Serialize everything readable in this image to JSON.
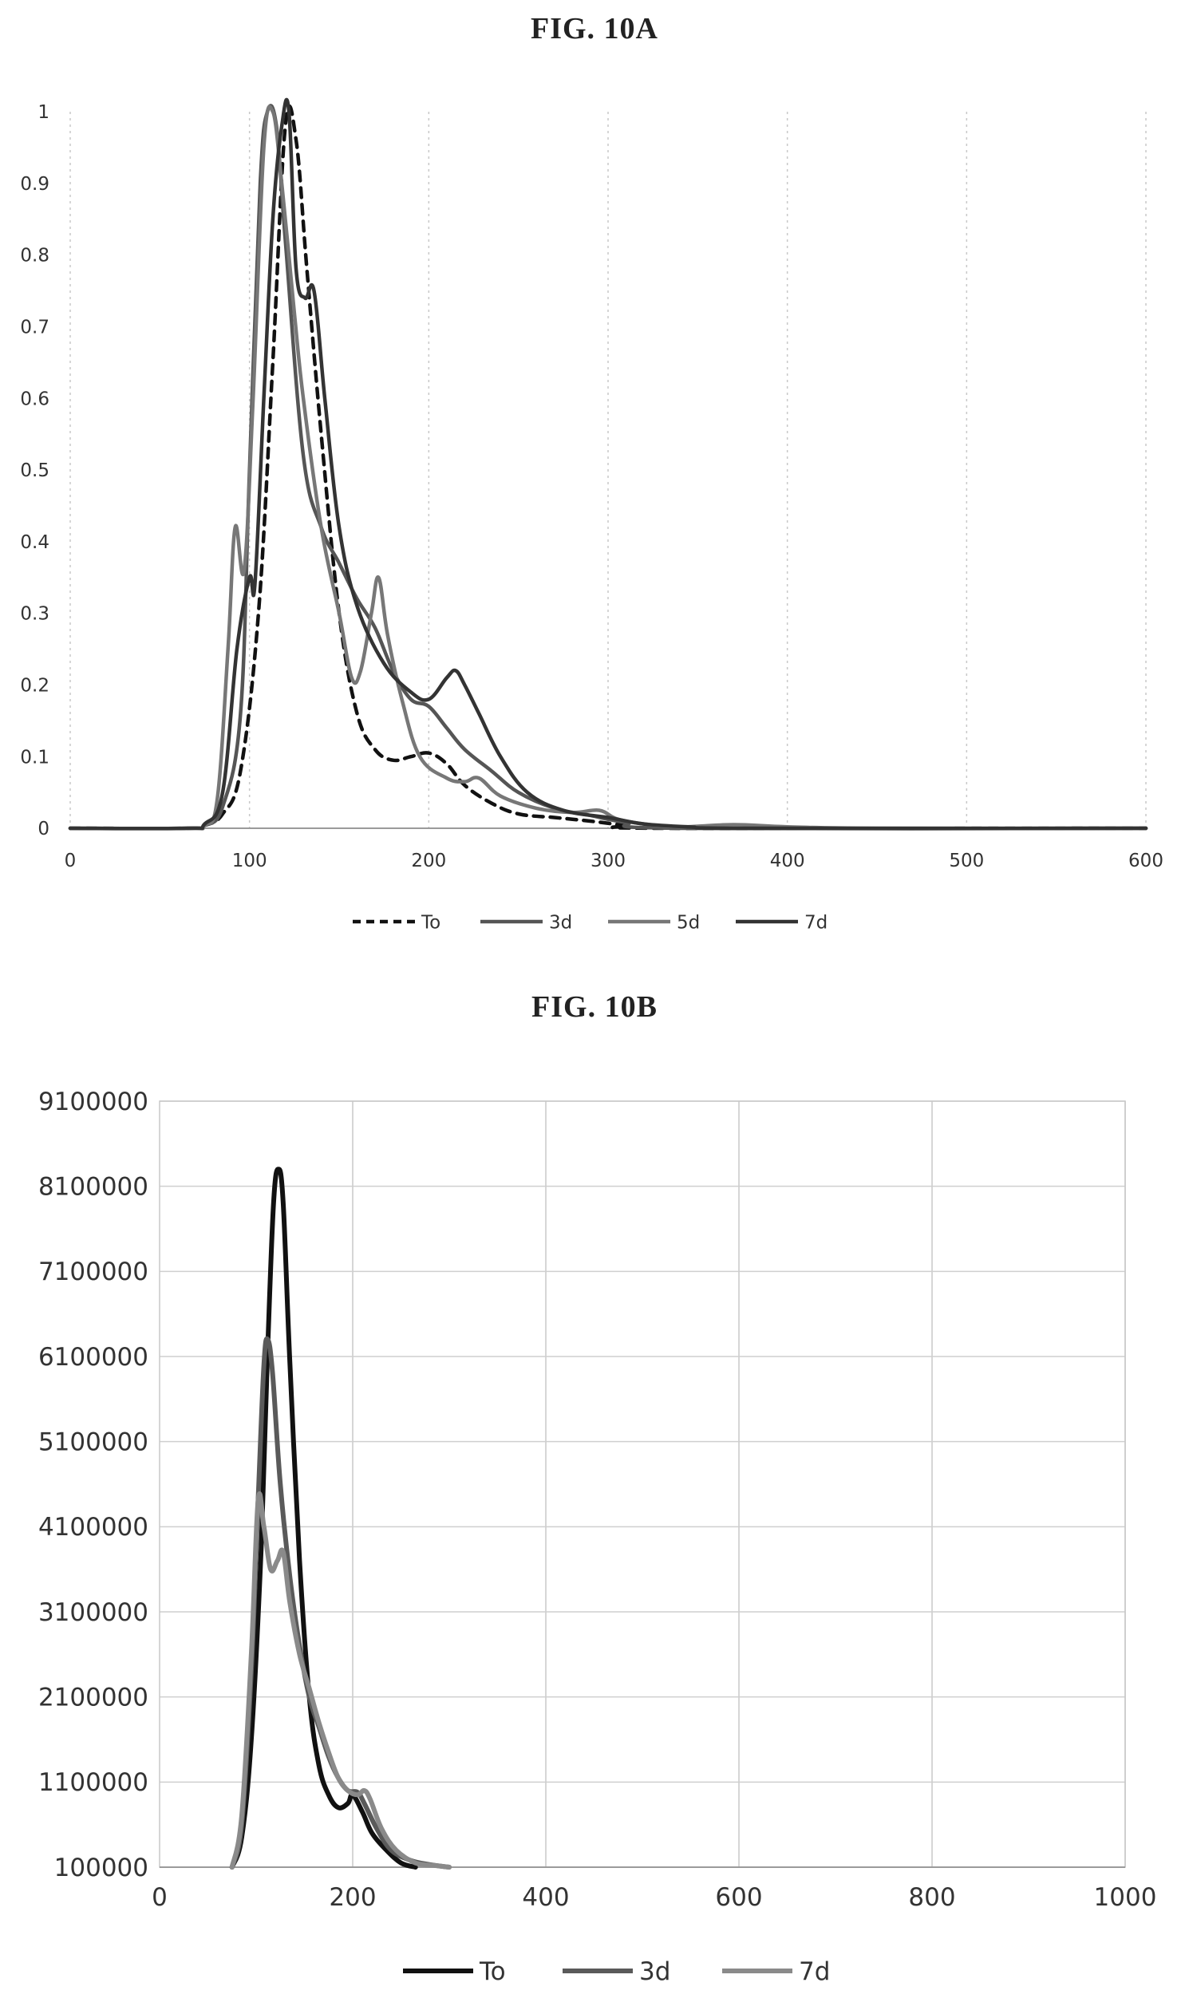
{
  "figures": [
    {
      "title": "FIG. 10A",
      "chart_data": {
        "type": "line",
        "title": "",
        "xlabel": "",
        "ylabel": "",
        "xlim": [
          0,
          600
        ],
        "ylim": [
          0,
          1
        ],
        "x_ticks": [
          "0",
          "100",
          "200",
          "300",
          "400",
          "500",
          "600"
        ],
        "y_ticks": [
          "0",
          "0.1",
          "0.2",
          "0.3",
          "0.4",
          "0.5",
          "0.6",
          "0.7",
          "0.8",
          "0.9",
          "1"
        ],
        "grid": "vertical-dotted",
        "legend_position": "bottom-center",
        "series": [
          {
            "name": "To",
            "style": "dashed",
            "color": "#111111",
            "points": [
              [
                0,
                0
              ],
              [
                65,
                0
              ],
              [
                75,
                0.004
              ],
              [
                85,
                0.02
              ],
              [
                95,
                0.08
              ],
              [
                105,
                0.3
              ],
              [
                113,
                0.65
              ],
              [
                120,
                0.98
              ],
              [
                126,
                0.96
              ],
              [
                132,
                0.78
              ],
              [
                140,
                0.55
              ],
              [
                150,
                0.3
              ],
              [
                160,
                0.16
              ],
              [
                170,
                0.11
              ],
              [
                180,
                0.095
              ],
              [
                190,
                0.1
              ],
              [
                200,
                0.105
              ],
              [
                210,
                0.09
              ],
              [
                220,
                0.06
              ],
              [
                235,
                0.035
              ],
              [
                250,
                0.02
              ],
              [
                270,
                0.015
              ],
              [
                290,
                0.01
              ],
              [
                310,
                0.004
              ],
              [
                330,
                0
              ],
              [
                600,
                0
              ]
            ]
          },
          {
            "name": "3d",
            "style": "solid",
            "color": "#555555",
            "points": [
              [
                0,
                0
              ],
              [
                65,
                0
              ],
              [
                75,
                0.004
              ],
              [
                85,
                0.03
              ],
              [
                95,
                0.16
              ],
              [
                100,
                0.5
              ],
              [
                106,
                0.9
              ],
              [
                110,
                1
              ],
              [
                115,
                0.98
              ],
              [
                120,
                0.82
              ],
              [
                130,
                0.52
              ],
              [
                140,
                0.42
              ],
              [
                150,
                0.37
              ],
              [
                160,
                0.32
              ],
              [
                170,
                0.28
              ],
              [
                180,
                0.22
              ],
              [
                190,
                0.18
              ],
              [
                200,
                0.17
              ],
              [
                210,
                0.14
              ],
              [
                220,
                0.11
              ],
              [
                235,
                0.08
              ],
              [
                250,
                0.05
              ],
              [
                270,
                0.028
              ],
              [
                290,
                0.018
              ],
              [
                310,
                0.008
              ],
              [
                340,
                0
              ],
              [
                600,
                0
              ]
            ]
          },
          {
            "name": "5d",
            "style": "solid",
            "color": "#777777",
            "points": [
              [
                0,
                0
              ],
              [
                65,
                0
              ],
              [
                75,
                0.004
              ],
              [
                82,
                0.04
              ],
              [
                88,
                0.25
              ],
              [
                92,
                0.42
              ],
              [
                97,
                0.36
              ],
              [
                102,
                0.6
              ],
              [
                108,
                0.95
              ],
              [
                113,
                1
              ],
              [
                118,
                0.9
              ],
              [
                125,
                0.72
              ],
              [
                130,
                0.6
              ],
              [
                140,
                0.42
              ],
              [
                150,
                0.3
              ],
              [
                157,
                0.21
              ],
              [
                162,
                0.22
              ],
              [
                168,
                0.3
              ],
              [
                172,
                0.35
              ],
              [
                177,
                0.27
              ],
              [
                185,
                0.18
              ],
              [
                195,
                0.1
              ],
              [
                210,
                0.07
              ],
              [
                220,
                0.065
              ],
              [
                228,
                0.07
              ],
              [
                240,
                0.045
              ],
              [
                260,
                0.028
              ],
              [
                280,
                0.022
              ],
              [
                295,
                0.025
              ],
              [
                305,
                0.013
              ],
              [
                320,
                0.006
              ],
              [
                340,
                0.002
              ],
              [
                370,
                0.005
              ],
              [
                400,
                0.002
              ],
              [
                450,
                0
              ],
              [
                600,
                0
              ]
            ]
          },
          {
            "name": "7d",
            "style": "solid",
            "color": "#333333",
            "points": [
              [
                0,
                0
              ],
              [
                65,
                0
              ],
              [
                75,
                0.006
              ],
              [
                85,
                0.05
              ],
              [
                93,
                0.25
              ],
              [
                100,
                0.35
              ],
              [
                103,
                0.34
              ],
              [
                108,
                0.6
              ],
              [
                113,
                0.85
              ],
              [
                118,
                0.98
              ],
              [
                122,
                1
              ],
              [
                126,
                0.78
              ],
              [
                131,
                0.74
              ],
              [
                136,
                0.75
              ],
              [
                142,
                0.6
              ],
              [
                150,
                0.42
              ],
              [
                160,
                0.31
              ],
              [
                175,
                0.23
              ],
              [
                190,
                0.19
              ],
              [
                200,
                0.18
              ],
              [
                210,
                0.21
              ],
              [
                215,
                0.22
              ],
              [
                220,
                0.2
              ],
              [
                228,
                0.16
              ],
              [
                240,
                0.1
              ],
              [
                255,
                0.05
              ],
              [
                275,
                0.025
              ],
              [
                300,
                0.015
              ],
              [
                320,
                0.006
              ],
              [
                345,
                0.002
              ],
              [
                380,
                0
              ],
              [
                600,
                0
              ]
            ]
          }
        ]
      }
    },
    {
      "title": "FIG. 10B",
      "chart_data": {
        "type": "line",
        "title": "",
        "xlabel": "",
        "ylabel": "",
        "xlim": [
          0,
          1000
        ],
        "ylim": [
          100000,
          9100000
        ],
        "x_ticks": [
          "0",
          "200",
          "400",
          "600",
          "800",
          "1000"
        ],
        "y_ticks": [
          "100000",
          "1100000",
          "2100000",
          "3100000",
          "4100000",
          "5100000",
          "6100000",
          "7100000",
          "8100000",
          "9100000"
        ],
        "grid": "both",
        "legend_position": "bottom-center",
        "series": [
          {
            "name": "To",
            "style": "solid",
            "color": "#111111",
            "points": [
              [
                75,
                100000
              ],
              [
                85,
                450000
              ],
              [
                95,
                1600000
              ],
              [
                105,
                3800000
              ],
              [
                112,
                6200000
              ],
              [
                118,
                7900000
              ],
              [
                123,
                8300000
              ],
              [
                128,
                7900000
              ],
              [
                135,
                6000000
              ],
              [
                145,
                3700000
              ],
              [
                155,
                2100000
              ],
              [
                165,
                1300000
              ],
              [
                175,
                950000
              ],
              [
                185,
                800000
              ],
              [
                195,
                850000
              ],
              [
                200,
                950000
              ],
              [
                210,
                750000
              ],
              [
                220,
                500000
              ],
              [
                235,
                300000
              ],
              [
                250,
                150000
              ],
              [
                265,
                100000
              ]
            ]
          },
          {
            "name": "3d",
            "style": "solid",
            "color": "#5a5a5a",
            "points": [
              [
                75,
                100000
              ],
              [
                85,
                600000
              ],
              [
                95,
                2400000
              ],
              [
                102,
                4400000
              ],
              [
                108,
                6000000
              ],
              [
                112,
                6300000
              ],
              [
                117,
                5900000
              ],
              [
                125,
                4600000
              ],
              [
                135,
                3500000
              ],
              [
                145,
                2700000
              ],
              [
                155,
                2100000
              ],
              [
                165,
                1750000
              ],
              [
                175,
                1400000
              ],
              [
                185,
                1150000
              ],
              [
                195,
                1000000
              ],
              [
                205,
                980000
              ],
              [
                212,
                850000
              ],
              [
                225,
                550000
              ],
              [
                240,
                300000
              ],
              [
                260,
                180000
              ],
              [
                280,
                130000
              ],
              [
                300,
                100000
              ]
            ]
          },
          {
            "name": "7d",
            "style": "solid",
            "color": "#8a8a8a",
            "points": [
              [
                75,
                100000
              ],
              [
                85,
                700000
              ],
              [
                95,
                2600000
              ],
              [
                102,
                4400000
              ],
              [
                108,
                4100000
              ],
              [
                115,
                3600000
              ],
              [
                122,
                3700000
              ],
              [
                128,
                3800000
              ],
              [
                135,
                3200000
              ],
              [
                145,
                2600000
              ],
              [
                155,
                2200000
              ],
              [
                165,
                1800000
              ],
              [
                175,
                1450000
              ],
              [
                185,
                1150000
              ],
              [
                195,
                1000000
              ],
              [
                205,
                950000
              ],
              [
                212,
                1000000
              ],
              [
                218,
                900000
              ],
              [
                230,
                550000
              ],
              [
                245,
                300000
              ],
              [
                265,
                150000
              ],
              [
                285,
                120000
              ],
              [
                300,
                100000
              ]
            ]
          }
        ]
      }
    }
  ]
}
